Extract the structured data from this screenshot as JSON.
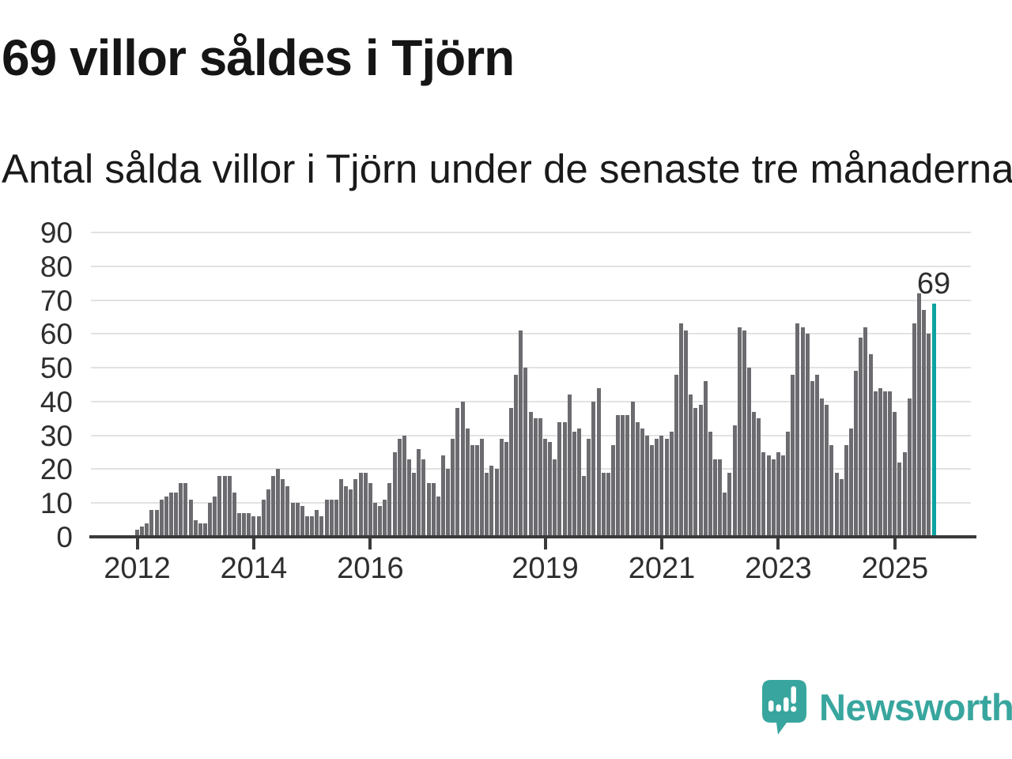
{
  "header": {
    "title": "69 villor såldes i Tjörn",
    "subtitle": "Antal sålda villor i Tjörn under de senaste tre månaderna."
  },
  "chart_data": {
    "type": "bar",
    "title": "69 villor såldes i Tjörn",
    "subtitle": "Antal sålda villor i Tjörn under de senaste tre månaderna.",
    "frequency": "monthly",
    "x_start": "2012-01",
    "x_end": "2025-09",
    "values": [
      2,
      3,
      4,
      8,
      8,
      11,
      12,
      13,
      13,
      16,
      16,
      11,
      5,
      4,
      4,
      10,
      12,
      18,
      18,
      18,
      13,
      7,
      7,
      7,
      6,
      6,
      11,
      14,
      18,
      20,
      17,
      15,
      10,
      10,
      9,
      6,
      6,
      8,
      6,
      11,
      11,
      11,
      17,
      15,
      14,
      17,
      19,
      19,
      16,
      10,
      9,
      11,
      16,
      25,
      29,
      30,
      23,
      19,
      26,
      23,
      16,
      16,
      12,
      24,
      20,
      29,
      38,
      40,
      32,
      27,
      27,
      29,
      19,
      21,
      20,
      29,
      28,
      38,
      48,
      61,
      50,
      37,
      35,
      35,
      29,
      28,
      23,
      34,
      34,
      42,
      31,
      32,
      18,
      29,
      40,
      44,
      19,
      19,
      27,
      36,
      36,
      36,
      40,
      34,
      32,
      30,
      27,
      29,
      30,
      29,
      31,
      48,
      63,
      61,
      42,
      38,
      39,
      46,
      31,
      23,
      23,
      13,
      19,
      33,
      62,
      61,
      50,
      37,
      35,
      25,
      24,
      23,
      25,
      24,
      31,
      48,
      63,
      62,
      60,
      46,
      48,
      41,
      39,
      27,
      19,
      17,
      27,
      32,
      49,
      59,
      62,
      54,
      43,
      44,
      43,
      43,
      37,
      22,
      25,
      41,
      63,
      72,
      67,
      60,
      69
    ],
    "highlight": {
      "index": 164,
      "value": 69,
      "label": "69",
      "month": "2025-09",
      "color": "#0ba3a2"
    },
    "bar_color": "#6b6b70",
    "grid": true,
    "legend": false,
    "ylim": [
      0,
      90
    ],
    "y_axis": {
      "ticks": [
        0,
        10,
        20,
        30,
        40,
        50,
        60,
        70,
        80,
        90
      ]
    },
    "x_axis": {
      "ticks": [
        {
          "label": "2012",
          "month_index": 0
        },
        {
          "label": "2014",
          "month_index": 24
        },
        {
          "label": "2016",
          "month_index": 48
        },
        {
          "label": "2019",
          "month_index": 84
        },
        {
          "label": "2021",
          "month_index": 108
        },
        {
          "label": "2023",
          "month_index": 132
        },
        {
          "label": "2025",
          "month_index": 156
        }
      ]
    },
    "annotation": {
      "text": "69"
    }
  },
  "footer": {
    "brand": "Newsworthy",
    "brand_color": "#38a69e",
    "logo_icon": "bar-chart-exclamation-speech-bubble-icon"
  },
  "colors": {
    "background": "#ffffff",
    "bar": "#6b6b70",
    "highlight": "#0ba3a2",
    "axis": "#3a3a3a",
    "gridline": "#e2e2e2",
    "text": "#1a1a1a"
  }
}
